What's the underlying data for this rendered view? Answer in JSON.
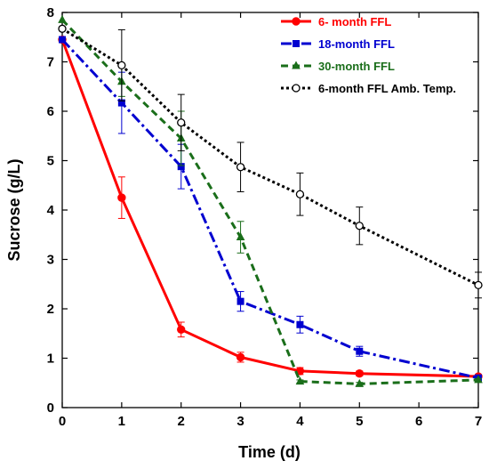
{
  "chart_data": {
    "type": "line",
    "title": "",
    "xlabel": "Time (d)",
    "ylabel": "Sucrose (g/L)",
    "xlim": [
      0,
      7
    ],
    "ylim": [
      0,
      8
    ],
    "xticks": [
      "0",
      "1",
      "2",
      "3",
      "4",
      "5",
      "6",
      "7"
    ],
    "yticks": [
      "0",
      "1",
      "2",
      "3",
      "4",
      "5",
      "6",
      "7",
      "8"
    ],
    "grid": false,
    "legend_position": "top-right",
    "series": [
      {
        "name": "6- month FFL",
        "color": "#ff0000",
        "line_style": "solid",
        "marker": "filled-circle",
        "x": [
          0,
          1,
          2,
          3,
          4,
          5,
          7
        ],
        "y": [
          7.45,
          4.25,
          1.58,
          1.02,
          0.74,
          0.69,
          0.63
        ],
        "error": [
          0,
          0.42,
          0.15,
          0.1,
          0.07,
          0.05,
          0.04
        ]
      },
      {
        "name": "18-month FFL",
        "color": "#0000d0",
        "line_style": "dashdot",
        "marker": "filled-square",
        "x": [
          0,
          1,
          2,
          3,
          4,
          5,
          7
        ],
        "y": [
          7.45,
          6.17,
          4.88,
          2.15,
          1.68,
          1.14,
          0.6
        ],
        "error": [
          0,
          0.62,
          0.45,
          0.2,
          0.17,
          0.1,
          0.04
        ]
      },
      {
        "name": "30-month FFL",
        "color": "#1a6e1a",
        "line_style": "dashed",
        "marker": "filled-triangle",
        "x": [
          0,
          1,
          2,
          3,
          4,
          5,
          7
        ],
        "y": [
          7.85,
          6.6,
          5.45,
          3.45,
          0.53,
          0.48,
          0.56
        ],
        "error": [
          0,
          0.3,
          0.55,
          0.32,
          0.03,
          0.03,
          0.03
        ]
      },
      {
        "name": "6-month FFL Amb. Temp.",
        "color": "#000000",
        "line_style": "dotted",
        "marker": "open-circle",
        "x": [
          0,
          1,
          2,
          3,
          4,
          5,
          7
        ],
        "y": [
          7.67,
          6.93,
          5.77,
          4.87,
          4.32,
          3.68,
          2.48
        ],
        "error": [
          0,
          0.72,
          0.57,
          0.5,
          0.43,
          0.38,
          0.26
        ]
      }
    ]
  }
}
